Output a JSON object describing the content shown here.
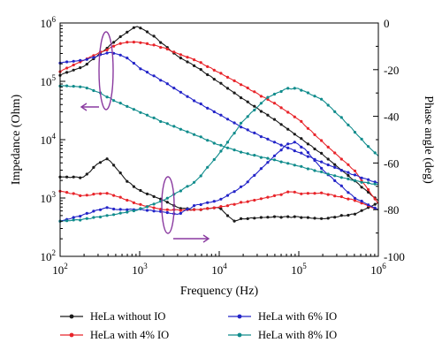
{
  "chart_data": {
    "type": "line",
    "xlabel": "Frequency (Hz)",
    "ylabel_left": "Impedance (Ohm)",
    "ylabel_right": "Phase angle (deg)",
    "x_scale": "log",
    "xlim": [
      100,
      1000000
    ],
    "ylim_left": [
      100,
      1000000
    ],
    "y_scale_left": "log",
    "ylim_right": [
      -100,
      0
    ],
    "x_ticks": [
      {
        "value": 100,
        "base": "10",
        "exp": "2"
      },
      {
        "value": 1000,
        "base": "10",
        "exp": "3"
      },
      {
        "value": 10000,
        "base": "10",
        "exp": "4"
      },
      {
        "value": 100000,
        "base": "10",
        "exp": "5"
      },
      {
        "value": 1000000,
        "base": "10",
        "exp": "6"
      }
    ],
    "y_ticks_left": [
      {
        "value": 100,
        "base": "10",
        "exp": "2"
      },
      {
        "value": 1000,
        "base": "10",
        "exp": "3"
      },
      {
        "value": 10000,
        "base": "10",
        "exp": "4"
      },
      {
        "value": 100000,
        "base": "10",
        "exp": "5"
      },
      {
        "value": 1000000,
        "base": "10",
        "exp": "6"
      }
    ],
    "y_ticks_right": [
      "0",
      "-20",
      "-40",
      "-60",
      "-80",
      "-100"
    ],
    "y_ticks_right_values": [
      0,
      -20,
      -40,
      -60,
      -80,
      -100
    ],
    "legend_position": "bottom",
    "grid": false,
    "series": [
      {
        "name": "HeLa without IO",
        "color": "#1a1a1a",
        "impedance": [
          [
            100,
            130000
          ],
          [
            200,
            180000
          ],
          [
            300,
            280000
          ],
          [
            400,
            380000
          ],
          [
            500,
            500000
          ],
          [
            700,
            700000
          ],
          [
            900,
            880000
          ],
          [
            1000,
            850000
          ],
          [
            1500,
            600000
          ],
          [
            2000,
            430000
          ],
          [
            3000,
            270000
          ],
          [
            5000,
            180000
          ],
          [
            10000,
            95000
          ],
          [
            20000,
            50000
          ],
          [
            50000,
            22000
          ],
          [
            100000,
            11000
          ],
          [
            200000,
            5500
          ],
          [
            500000,
            2000
          ],
          [
            1000000,
            900
          ]
        ],
        "phase": [
          [
            100,
            -66
          ],
          [
            200,
            -66
          ],
          [
            300,
            -60
          ],
          [
            400,
            -58
          ],
          [
            500,
            -62
          ],
          [
            700,
            -68
          ],
          [
            1000,
            -72
          ],
          [
            2000,
            -76
          ],
          [
            3000,
            -79
          ],
          [
            5000,
            -80
          ],
          [
            10000,
            -79
          ],
          [
            15000,
            -85
          ],
          [
            20000,
            -84
          ],
          [
            50000,
            -83
          ],
          [
            100000,
            -83
          ],
          [
            200000,
            -84
          ],
          [
            500000,
            -82
          ],
          [
            1000000,
            -77
          ]
        ]
      },
      {
        "name": "HeLa with 4% IO",
        "color": "#e8242a",
        "impedance": [
          [
            100,
            150000
          ],
          [
            200,
            230000
          ],
          [
            300,
            300000
          ],
          [
            400,
            350000
          ],
          [
            500,
            420000
          ],
          [
            700,
            470000
          ],
          [
            1000,
            470000
          ],
          [
            1500,
            420000
          ],
          [
            2000,
            380000
          ],
          [
            3000,
            300000
          ],
          [
            5000,
            230000
          ],
          [
            10000,
            140000
          ],
          [
            20000,
            85000
          ],
          [
            50000,
            42000
          ],
          [
            100000,
            22000
          ],
          [
            200000,
            9000
          ],
          [
            500000,
            3000
          ],
          [
            1000000,
            800
          ]
        ],
        "phase": [
          [
            100,
            -72
          ],
          [
            200,
            -74
          ],
          [
            300,
            -73
          ],
          [
            400,
            -73
          ],
          [
            700,
            -76
          ],
          [
            1000,
            -78
          ],
          [
            2000,
            -80
          ],
          [
            3000,
            -80
          ],
          [
            5000,
            -80
          ],
          [
            10000,
            -79
          ],
          [
            20000,
            -77
          ],
          [
            50000,
            -74
          ],
          [
            80000,
            -72
          ],
          [
            100000,
            -73
          ],
          [
            200000,
            -73
          ],
          [
            500000,
            -76
          ],
          [
            1000000,
            -80
          ]
        ]
      },
      {
        "name": "HeLa with 6% IO",
        "color": "#2324c8",
        "impedance": [
          [
            100,
            210000
          ],
          [
            200,
            230000
          ],
          [
            300,
            270000
          ],
          [
            400,
            310000
          ],
          [
            500,
            300000
          ],
          [
            700,
            250000
          ],
          [
            1000,
            170000
          ],
          [
            2000,
            100000
          ],
          [
            3000,
            70000
          ],
          [
            5000,
            45000
          ],
          [
            10000,
            27000
          ],
          [
            20000,
            16000
          ],
          [
            50000,
            9000
          ],
          [
            100000,
            6000
          ],
          [
            200000,
            4000
          ],
          [
            500000,
            2500
          ],
          [
            1000000,
            1800
          ]
        ],
        "phase": [
          [
            100,
            -85
          ],
          [
            200,
            -82
          ],
          [
            300,
            -80
          ],
          [
            400,
            -79
          ],
          [
            500,
            -80
          ],
          [
            1000,
            -80
          ],
          [
            2000,
            -81
          ],
          [
            3000,
            -82
          ],
          [
            5000,
            -78
          ],
          [
            10000,
            -76
          ],
          [
            20000,
            -70
          ],
          [
            40000,
            -60
          ],
          [
            70000,
            -52
          ],
          [
            90000,
            -51
          ],
          [
            120000,
            -54
          ],
          [
            200000,
            -63
          ],
          [
            500000,
            -75
          ],
          [
            1000000,
            -80
          ]
        ]
      },
      {
        "name": "HeLa with 8% IO",
        "color": "#108c8c",
        "impedance": [
          [
            100,
            85000
          ],
          [
            200,
            80000
          ],
          [
            300,
            65000
          ],
          [
            500,
            45000
          ],
          [
            1000,
            30000
          ],
          [
            2000,
            20000
          ],
          [
            5000,
            12000
          ],
          [
            10000,
            8000
          ],
          [
            20000,
            6000
          ],
          [
            50000,
            4500
          ],
          [
            100000,
            3500
          ],
          [
            200000,
            2700
          ],
          [
            500000,
            2000
          ],
          [
            1000000,
            1700
          ]
        ],
        "phase": [
          [
            100,
            -85
          ],
          [
            200,
            -84
          ],
          [
            300,
            -83
          ],
          [
            500,
            -82
          ],
          [
            1000,
            -80
          ],
          [
            2000,
            -76
          ],
          [
            5000,
            -68
          ],
          [
            10000,
            -56
          ],
          [
            20000,
            -42
          ],
          [
            40000,
            -32
          ],
          [
            70000,
            -28
          ],
          [
            100000,
            -28
          ],
          [
            200000,
            -33
          ],
          [
            400000,
            -43
          ],
          [
            700000,
            -52
          ],
          [
            1000000,
            -57
          ]
        ]
      }
    ]
  }
}
